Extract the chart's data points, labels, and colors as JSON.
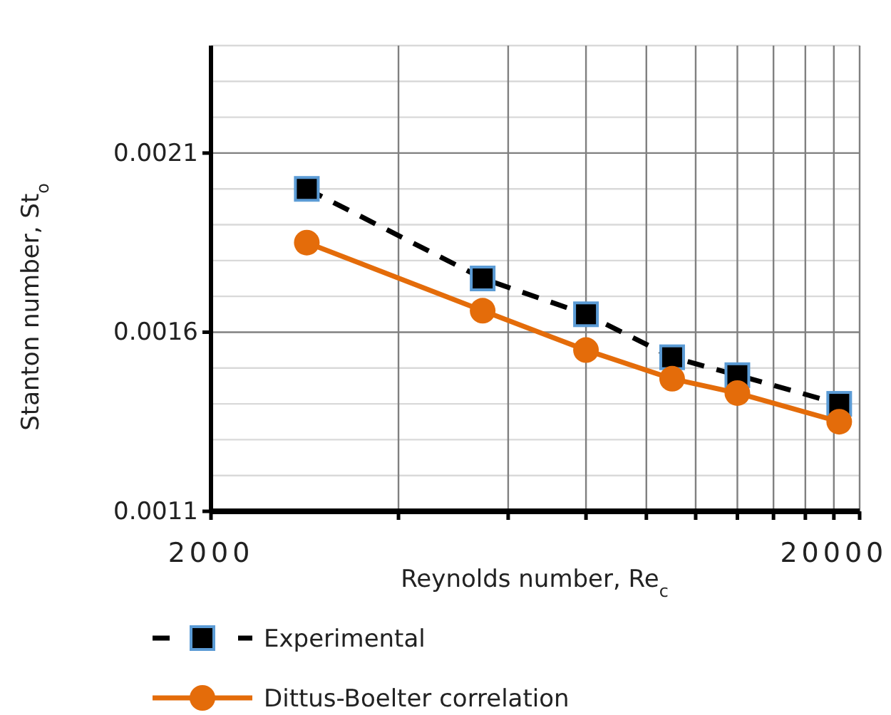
{
  "chart_data": {
    "type": "line",
    "xlabel": "Reynolds number, Re$_{c}$",
    "ylabel": "Stanton number, St$_{o}$",
    "log": "x",
    "xlim": [
      2000,
      22000
    ],
    "xticks": [
      2000,
      {
        "value": 4000,
        "label": null
      },
      {
        "value": 6000,
        "label": null
      },
      {
        "value": 8000,
        "label": null
      },
      {
        "value": 10000,
        "label": null
      },
      {
        "value": 12000,
        "label": null
      },
      {
        "value": 14000,
        "label": null
      },
      {
        "value": 16000,
        "label": null
      },
      {
        "value": 18000,
        "label": null
      },
      20000,
      {
        "value": 22000,
        "label": null
      }
    ],
    "ylim": [
      0.0011,
      0.0024
    ],
    "yticks": [
      0.0011,
      {
        "value": 0.0012,
        "label": null
      },
      {
        "value": 0.0013,
        "label": null
      },
      {
        "value": 0.0014,
        "label": null
      },
      {
        "value": 0.0015,
        "label": null
      },
      0.0016,
      {
        "value": 0.0017,
        "label": null
      },
      {
        "value": 0.0018,
        "label": null
      },
      {
        "value": 0.0019,
        "label": null
      },
      {
        "value": 0.002,
        "label": null
      },
      0.0021,
      {
        "value": 0.0022,
        "label": null
      },
      {
        "value": 0.0023,
        "label": null
      },
      {
        "value": 0.0024,
        "label": null
      }
    ],
    "grid": true,
    "legend": "bottom",
    "series": [
      {
        "name": "Experimental",
        "color": "#000000",
        "marker": "square",
        "line_style": "dashed",
        "x": [
          2850,
          5460,
          8000,
          11000,
          14000,
          20400
        ],
        "values": [
          0.002,
          0.00175,
          0.00165,
          0.00153,
          0.00148,
          0.0014
        ]
      },
      {
        "name": "Dittus-Boelter correlation",
        "color": "#e46c0a",
        "marker": "circle",
        "line_style": "solid",
        "x": [
          2850,
          5460,
          8000,
          11000,
          14000,
          20400
        ],
        "values": [
          0.00185,
          0.00166,
          0.00155,
          0.00147,
          0.00143,
          0.00135
        ]
      }
    ]
  }
}
